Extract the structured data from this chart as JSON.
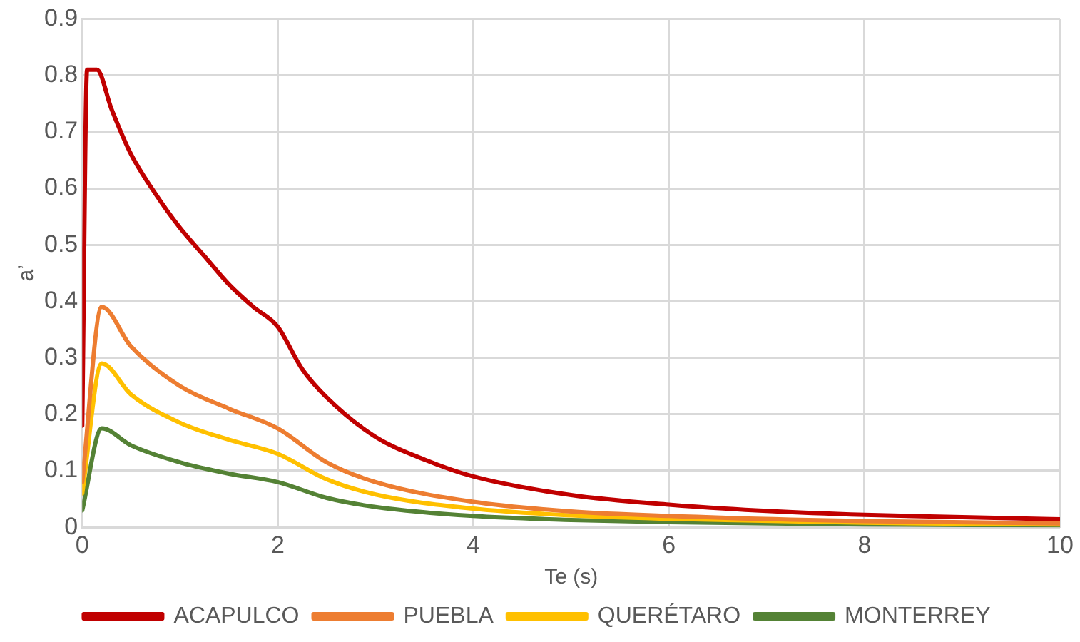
{
  "chart_data": {
    "type": "line",
    "xlabel": "Te (s)",
    "ylabel": "a’",
    "x": [
      0,
      0.05,
      0.15,
      0.3,
      0.5,
      0.75,
      1,
      1.25,
      1.5,
      1.75,
      2,
      2.25,
      2.5,
      3,
      3.5,
      4,
      5,
      6,
      7,
      8,
      9,
      10
    ],
    "series": [
      {
        "name": "ACAPULCO",
        "color": "#c00000",
        "values": [
          0.18,
          0.81,
          0.81,
          0.74,
          0.66,
          0.59,
          0.53,
          0.48,
          0.43,
          0.39,
          0.355,
          0.28,
          0.23,
          0.16,
          0.12,
          0.09,
          0.057,
          0.04,
          0.029,
          0.022,
          0.018,
          0.014
        ]
      },
      {
        "name": "PUEBLA",
        "color": "#ed7d31",
        "x": [
          0,
          0.2,
          0.5,
          1,
          1.5,
          2,
          2.5,
          3,
          4,
          5,
          6,
          8,
          10
        ],
        "values": [
          0.08,
          0.39,
          0.32,
          0.25,
          0.21,
          0.175,
          0.115,
          0.08,
          0.045,
          0.028,
          0.02,
          0.011,
          0.007
        ]
      },
      {
        "name": "QUERÉTARO",
        "color": "#ffc000",
        "x": [
          0,
          0.2,
          0.5,
          1,
          1.5,
          2,
          2.5,
          3,
          4,
          5,
          6,
          8,
          10
        ],
        "values": [
          0.06,
          0.29,
          0.235,
          0.185,
          0.155,
          0.13,
          0.085,
          0.058,
          0.033,
          0.021,
          0.015,
          0.008,
          0.005
        ]
      },
      {
        "name": "MONTERREY",
        "color": "#548235",
        "x": [
          0,
          0.2,
          0.5,
          1,
          1.5,
          2,
          2.5,
          3,
          4,
          5,
          6,
          8,
          10
        ],
        "values": [
          0.03,
          0.175,
          0.145,
          0.115,
          0.095,
          0.08,
          0.052,
          0.036,
          0.02,
          0.013,
          0.009,
          0.005,
          0.003
        ]
      }
    ],
    "xlim": [
      0,
      10
    ],
    "xticks": [
      0,
      2,
      4,
      6,
      8,
      10
    ],
    "ylim": [
      0,
      0.9
    ],
    "yticks": [
      0,
      0.1,
      0.2,
      0.3,
      0.4,
      0.5,
      0.6,
      0.7,
      0.8,
      0.9
    ],
    "grid": true,
    "legend": "bottom",
    "marker": "none",
    "line_style": "solid"
  }
}
